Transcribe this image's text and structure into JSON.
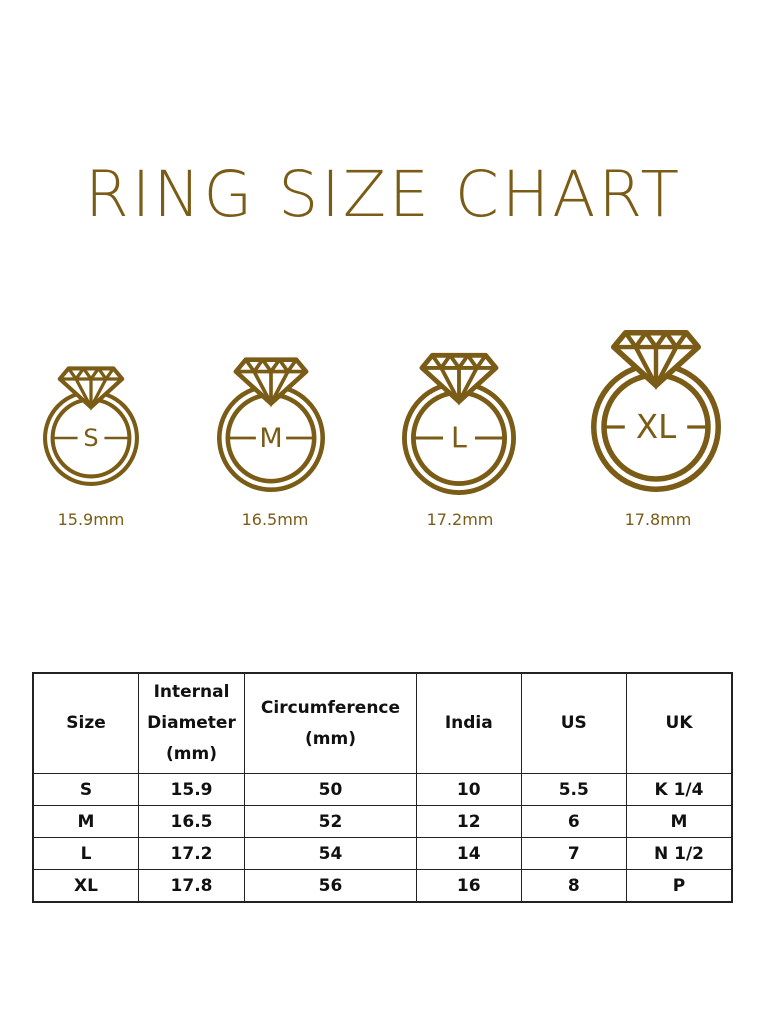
{
  "title": "RING SIZE CHART",
  "accent_color": "#7a5c17",
  "rings": [
    {
      "size": "S",
      "diameter": "15.9mm"
    },
    {
      "size": "M",
      "diameter": "16.5mm"
    },
    {
      "size": "L",
      "diameter": "17.2mm"
    },
    {
      "size": "XL",
      "diameter": "17.8mm"
    }
  ],
  "table": {
    "headers": [
      "Size",
      "Internal Diameter (mm)",
      "Circumference (mm)",
      "India",
      "US",
      "UK"
    ],
    "rows": [
      [
        "S",
        "15.9",
        "50",
        "10",
        "5.5",
        "K 1/4"
      ],
      [
        "M",
        "16.5",
        "52",
        "12",
        "6",
        "M"
      ],
      [
        "L",
        "17.2",
        "54",
        "14",
        "7",
        "N 1/2"
      ],
      [
        "XL",
        "17.8",
        "56",
        "16",
        "8",
        "P"
      ]
    ]
  }
}
